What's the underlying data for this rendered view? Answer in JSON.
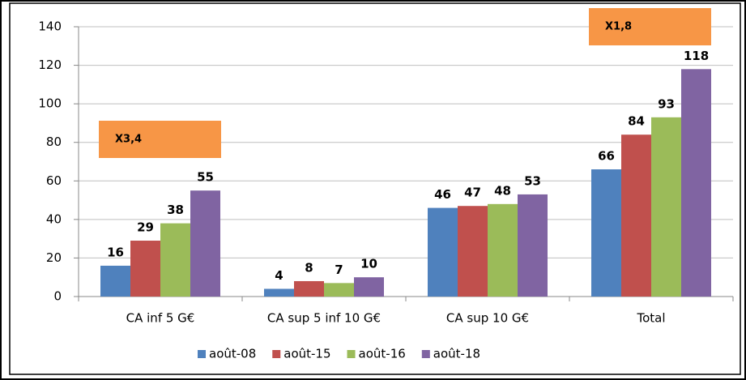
{
  "chart_data": {
    "type": "bar",
    "categories": [
      "CA inf 5 G€",
      "CA sup 5 inf 10 G€",
      "CA sup 10 G€",
      "Total"
    ],
    "series": [
      {
        "name": "août-08",
        "color": "#4f81bd",
        "values": [
          16,
          4,
          46,
          66
        ]
      },
      {
        "name": "août-15",
        "color": "#c0504d",
        "values": [
          29,
          8,
          47,
          84
        ]
      },
      {
        "name": "août-16",
        "color": "#9bbb59",
        "values": [
          38,
          7,
          48,
          93
        ]
      },
      {
        "name": "août-18",
        "color": "#8064a2",
        "values": [
          55,
          10,
          53,
          118
        ]
      }
    ],
    "ylim": [
      0,
      140
    ],
    "yticks": [
      0,
      20,
      40,
      60,
      80,
      100,
      120,
      140
    ],
    "grid": true,
    "legend": "bottom",
    "annotations": [
      "X3,4",
      "X1,8"
    ],
    "annotation_color": "#f79646"
  }
}
